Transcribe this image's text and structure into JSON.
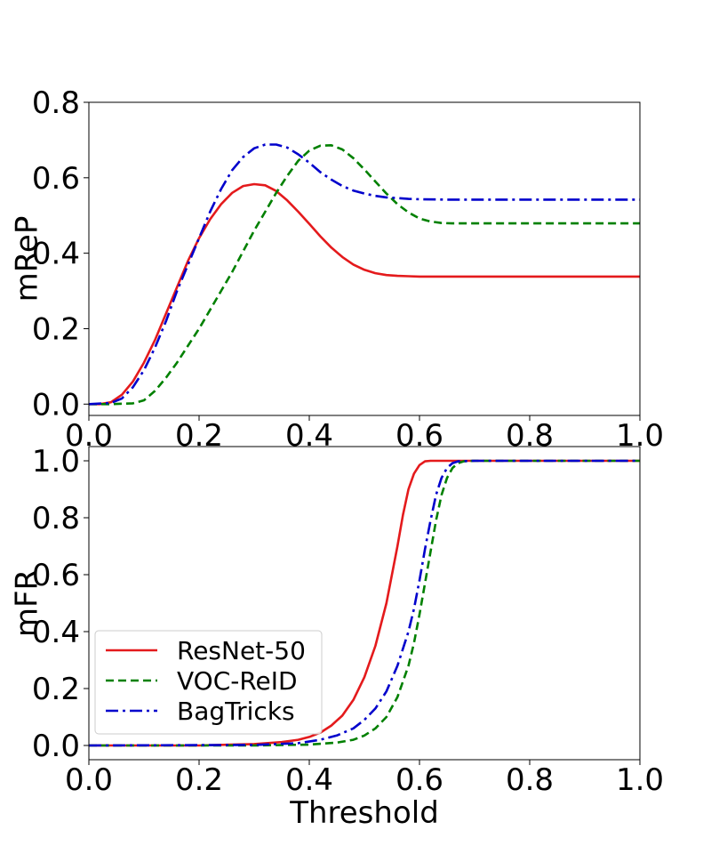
{
  "chart_data": [
    {
      "type": "line",
      "xlabel": "",
      "ylabel": "mReP",
      "xlim": [
        0.0,
        1.0
      ],
      "ylim": [
        -0.03,
        0.8
      ],
      "xticks": [
        "0.0",
        "0.2",
        "0.4",
        "0.6",
        "0.8",
        "1.0"
      ],
      "yticks": [
        "0.0",
        "0.2",
        "0.4",
        "0.6",
        "0.8"
      ],
      "grid": false,
      "series": [
        {
          "name": "ResNet-50",
          "color": "#e41a1c",
          "style": "solid",
          "x": [
            0.0,
            0.02,
            0.04,
            0.06,
            0.08,
            0.1,
            0.12,
            0.14,
            0.16,
            0.18,
            0.2,
            0.22,
            0.24,
            0.26,
            0.28,
            0.3,
            0.32,
            0.34,
            0.36,
            0.38,
            0.4,
            0.42,
            0.44,
            0.46,
            0.48,
            0.5,
            0.52,
            0.54,
            0.56,
            0.58,
            0.6,
            0.65,
            0.7,
            0.8,
            0.9,
            1.0
          ],
          "y": [
            0.0,
            0.0,
            0.005,
            0.025,
            0.06,
            0.11,
            0.17,
            0.24,
            0.31,
            0.38,
            0.44,
            0.49,
            0.53,
            0.56,
            0.578,
            0.583,
            0.58,
            0.565,
            0.54,
            0.51,
            0.478,
            0.445,
            0.415,
            0.39,
            0.37,
            0.356,
            0.347,
            0.342,
            0.34,
            0.339,
            0.338,
            0.338,
            0.338,
            0.338,
            0.338,
            0.338
          ]
        },
        {
          "name": "VOC-ReID",
          "color": "#008000",
          "style": "dashed",
          "x": [
            0.0,
            0.04,
            0.08,
            0.1,
            0.12,
            0.14,
            0.16,
            0.18,
            0.2,
            0.22,
            0.24,
            0.26,
            0.28,
            0.3,
            0.32,
            0.34,
            0.36,
            0.38,
            0.4,
            0.42,
            0.44,
            0.46,
            0.48,
            0.5,
            0.52,
            0.54,
            0.56,
            0.58,
            0.6,
            0.62,
            0.64,
            0.66,
            0.7,
            0.8,
            0.9,
            1.0
          ],
          "y": [
            0.0,
            0.0,
            0.002,
            0.01,
            0.035,
            0.07,
            0.11,
            0.155,
            0.2,
            0.25,
            0.3,
            0.35,
            0.405,
            0.46,
            0.51,
            0.56,
            0.605,
            0.645,
            0.672,
            0.685,
            0.686,
            0.675,
            0.652,
            0.622,
            0.59,
            0.558,
            0.53,
            0.508,
            0.492,
            0.484,
            0.48,
            0.479,
            0.479,
            0.479,
            0.479,
            0.479
          ]
        },
        {
          "name": "BagTricks",
          "color": "#0000cc",
          "style": "dashdot",
          "x": [
            0.0,
            0.04,
            0.06,
            0.08,
            0.1,
            0.12,
            0.14,
            0.16,
            0.18,
            0.2,
            0.22,
            0.24,
            0.26,
            0.28,
            0.3,
            0.32,
            0.34,
            0.36,
            0.38,
            0.4,
            0.42,
            0.44,
            0.46,
            0.48,
            0.5,
            0.52,
            0.54,
            0.56,
            0.58,
            0.6,
            0.65,
            0.7,
            0.8,
            0.9,
            1.0
          ],
          "y": [
            0.0,
            0.003,
            0.015,
            0.045,
            0.09,
            0.15,
            0.22,
            0.3,
            0.37,
            0.44,
            0.51,
            0.57,
            0.62,
            0.655,
            0.678,
            0.688,
            0.688,
            0.68,
            0.662,
            0.64,
            0.615,
            0.595,
            0.578,
            0.566,
            0.558,
            0.552,
            0.548,
            0.546,
            0.544,
            0.543,
            0.542,
            0.542,
            0.542,
            0.542,
            0.542
          ]
        }
      ]
    },
    {
      "type": "line",
      "xlabel": "Threshold",
      "ylabel": "mFR",
      "xlim": [
        0.0,
        1.0
      ],
      "ylim": [
        -0.05,
        1.05
      ],
      "xticks": [
        "0.0",
        "0.2",
        "0.4",
        "0.6",
        "0.8",
        "1.0"
      ],
      "yticks": [
        "0.0",
        "0.2",
        "0.4",
        "0.6",
        "0.8",
        "1.0"
      ],
      "grid": false,
      "legend": "lower-left",
      "series": [
        {
          "name": "ResNet-50",
          "color": "#e41a1c",
          "style": "solid",
          "x": [
            0.0,
            0.2,
            0.3,
            0.35,
            0.38,
            0.4,
            0.42,
            0.44,
            0.46,
            0.48,
            0.5,
            0.52,
            0.54,
            0.55,
            0.56,
            0.57,
            0.58,
            0.59,
            0.6,
            0.61,
            0.62,
            0.7,
            0.8,
            1.0
          ],
          "y": [
            0.0,
            0.0,
            0.005,
            0.012,
            0.02,
            0.03,
            0.045,
            0.07,
            0.105,
            0.16,
            0.24,
            0.35,
            0.5,
            0.6,
            0.7,
            0.81,
            0.9,
            0.955,
            0.985,
            0.998,
            1.0,
            1.0,
            1.0,
            1.0
          ]
        },
        {
          "name": "VOC-ReID",
          "color": "#008000",
          "style": "dashed",
          "x": [
            0.0,
            0.3,
            0.4,
            0.45,
            0.48,
            0.5,
            0.52,
            0.54,
            0.56,
            0.58,
            0.59,
            0.6,
            0.61,
            0.62,
            0.63,
            0.64,
            0.65,
            0.66,
            0.67,
            0.68,
            0.7,
            0.8,
            1.0
          ],
          "y": [
            0.0,
            0.0,
            0.003,
            0.01,
            0.02,
            0.035,
            0.06,
            0.1,
            0.17,
            0.28,
            0.36,
            0.46,
            0.57,
            0.68,
            0.79,
            0.88,
            0.94,
            0.975,
            0.992,
            0.998,
            1.0,
            1.0,
            1.0
          ]
        },
        {
          "name": "BagTricks",
          "color": "#0000cc",
          "style": "dashdot",
          "x": [
            0.0,
            0.3,
            0.38,
            0.42,
            0.45,
            0.48,
            0.5,
            0.52,
            0.54,
            0.56,
            0.58,
            0.59,
            0.6,
            0.61,
            0.62,
            0.63,
            0.64,
            0.65,
            0.66,
            0.67,
            0.7,
            0.8,
            1.0
          ],
          "y": [
            0.0,
            0.002,
            0.008,
            0.02,
            0.035,
            0.06,
            0.09,
            0.13,
            0.19,
            0.28,
            0.4,
            0.48,
            0.58,
            0.69,
            0.79,
            0.88,
            0.94,
            0.975,
            0.992,
            0.998,
            1.0,
            1.0,
            1.0
          ]
        }
      ]
    }
  ]
}
